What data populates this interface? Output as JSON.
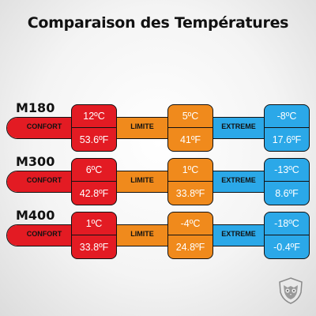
{
  "title": "Comparaison des Températures",
  "labels": {
    "comfort": "CONFORT",
    "limit": "LIMITE",
    "extreme": "EXTREME"
  },
  "rows": [
    {
      "model": "M180",
      "comfort": {
        "c": "12ºC",
        "f": "53.6ºF"
      },
      "limit": {
        "c": "5ºC",
        "f": "41ºF"
      },
      "extreme": {
        "c": "-8ºC",
        "f": "17.6ºF"
      }
    },
    {
      "model": "M300",
      "comfort": {
        "c": "6ºC",
        "f": "42.8ºF"
      },
      "limit": {
        "c": "1ºC",
        "f": "33.8ºF"
      },
      "extreme": {
        "c": "-13ºC",
        "f": "8.6ºF"
      }
    },
    {
      "model": "M400",
      "comfort": {
        "c": "1ºC",
        "f": "33.8ºF"
      },
      "limit": {
        "c": "-4ºC",
        "f": "24.8ºF"
      },
      "extreme": {
        "c": "-18ºC",
        "f": "-0.4ºF"
      }
    }
  ],
  "colors": {
    "comfort": "#e31b23",
    "limit": "#f08a1c",
    "extreme": "#2ba8e8"
  },
  "logo_icon": "owl-shield-icon"
}
